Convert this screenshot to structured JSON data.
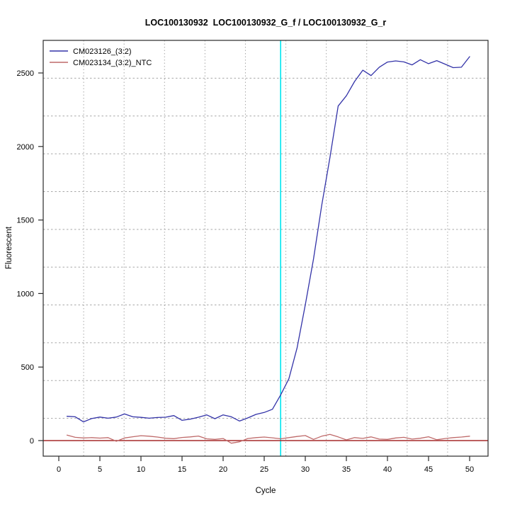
{
  "title": "LOC100130932  LOC100130932_G_f / LOC100130932_G_r",
  "colors": {
    "sample_line": "#3333a8",
    "ntc_line": "#bf6a6a",
    "zero_baseline": "#a52a2a",
    "threshold_cycle_line": "#00e5f0",
    "grid": "#a8a8a8",
    "axis": "#2a2a2a"
  },
  "chart_data": {
    "type": "line",
    "title": "LOC100130932  LOC100130932_G_f / LOC100130932_G_r",
    "xlabel": "Cycle",
    "ylabel": "Fluorescent",
    "x_ticks": [
      0,
      5,
      10,
      15,
      20,
      25,
      30,
      35,
      40,
      45,
      50
    ],
    "y_ticks": [
      0,
      500,
      1000,
      1500,
      2000,
      2500
    ],
    "xlim": [
      -1.8,
      52.2
    ],
    "ylim": [
      -110,
      2720
    ],
    "grid": {
      "on": true,
      "nx": 11,
      "ny": 11,
      "line_style": "dotted"
    },
    "threshold_cycle_x": 27,
    "zero_baseline_y": 0,
    "legend_position": "top-left",
    "x": [
      1,
      2,
      3,
      4,
      5,
      6,
      7,
      8,
      9,
      10,
      11,
      12,
      13,
      14,
      15,
      16,
      17,
      18,
      19,
      20,
      21,
      22,
      23,
      24,
      25,
      26,
      27,
      28,
      29,
      30,
      31,
      32,
      33,
      34,
      35,
      36,
      37,
      38,
      39,
      40,
      41,
      42,
      43,
      44,
      45,
      46,
      47,
      48,
      49,
      50
    ],
    "series": [
      {
        "name": "CM023126_(3:2)",
        "color": "#3333a8",
        "values": [
          165,
          162,
          127,
          150,
          160,
          152,
          160,
          181,
          162,
          158,
          152,
          157,
          159,
          170,
          138,
          146,
          159,
          175,
          149,
          175,
          162,
          133,
          154,
          178,
          191,
          213,
          310,
          420,
          630,
          923,
          1235,
          1600,
          1925,
          2275,
          2345,
          2442,
          2519,
          2482,
          2539,
          2574,
          2582,
          2575,
          2555,
          2590,
          2563,
          2584,
          2560,
          2536,
          2539,
          2611
        ]
      },
      {
        "name": "CM023134_(3:2)_NTC",
        "color": "#bf6a6a",
        "values": [
          37,
          22,
          18,
          20,
          17,
          20,
          -5,
          18,
          26,
          33,
          30,
          24,
          16,
          13,
          21,
          25,
          31,
          12,
          8,
          14,
          -18,
          -8,
          14,
          20,
          24,
          19,
          12,
          20,
          28,
          34,
          8,
          30,
          42,
          25,
          5,
          20,
          15,
          25,
          10,
          8,
          18,
          22,
          10,
          16,
          26,
          6,
          14,
          20,
          24,
          30
        ]
      }
    ]
  }
}
